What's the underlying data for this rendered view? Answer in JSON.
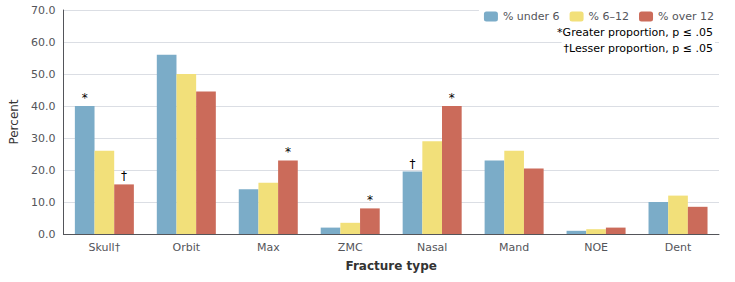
{
  "chart_data": {
    "type": "bar",
    "categories": [
      "Skull†",
      "Orbit",
      "Max",
      "ZMC",
      "Nasal",
      "Mand",
      "NOE",
      "Dent"
    ],
    "series": [
      {
        "name": "% under 6",
        "color": "#7BACC8",
        "values": [
          40.0,
          56.0,
          14.0,
          2.0,
          19.5,
          23.0,
          1.0,
          10.0
        ]
      },
      {
        "name": "% 6–12",
        "color": "#F2E07A",
        "values": [
          26.0,
          50.0,
          16.0,
          3.5,
          29.0,
          26.0,
          1.5,
          12.0
        ]
      },
      {
        "name": "% over 12",
        "color": "#CB6B5A",
        "values": [
          15.5,
          44.5,
          23.0,
          8.0,
          40.0,
          20.5,
          2.0,
          8.5
        ]
      }
    ],
    "xlabel": "Fracture type",
    "ylabel": "Percent",
    "ylim": [
      0,
      70
    ],
    "yticks": [
      {
        "value": 0,
        "label": "0.0"
      },
      {
        "value": 10,
        "label": "10.0"
      },
      {
        "value": 20,
        "label": "20.0"
      },
      {
        "value": 30,
        "label": "30.0"
      },
      {
        "value": 40,
        "label": "40.0"
      },
      {
        "value": 50,
        "label": "50.0"
      },
      {
        "value": 60,
        "label": "60.0"
      },
      {
        "value": 70,
        "label": "70.0"
      }
    ],
    "grid": true,
    "legend": "upper right",
    "legend_notes": [
      "*Greater proportion, p ≤ .05",
      "†Lesser proportion, p ≤ .05"
    ],
    "annotations": [
      {
        "category": "Skull†",
        "series": "% under 6",
        "text": "*"
      },
      {
        "category": "Skull†",
        "series": "% over 12",
        "text": "†"
      },
      {
        "category": "Max",
        "series": "% over 12",
        "text": "*"
      },
      {
        "category": "ZMC",
        "series": "% over 12",
        "text": "*"
      },
      {
        "category": "Nasal",
        "series": "% over 12",
        "text": "*"
      },
      {
        "category": "Nasal",
        "series": "% under 6",
        "text": "†"
      }
    ]
  }
}
